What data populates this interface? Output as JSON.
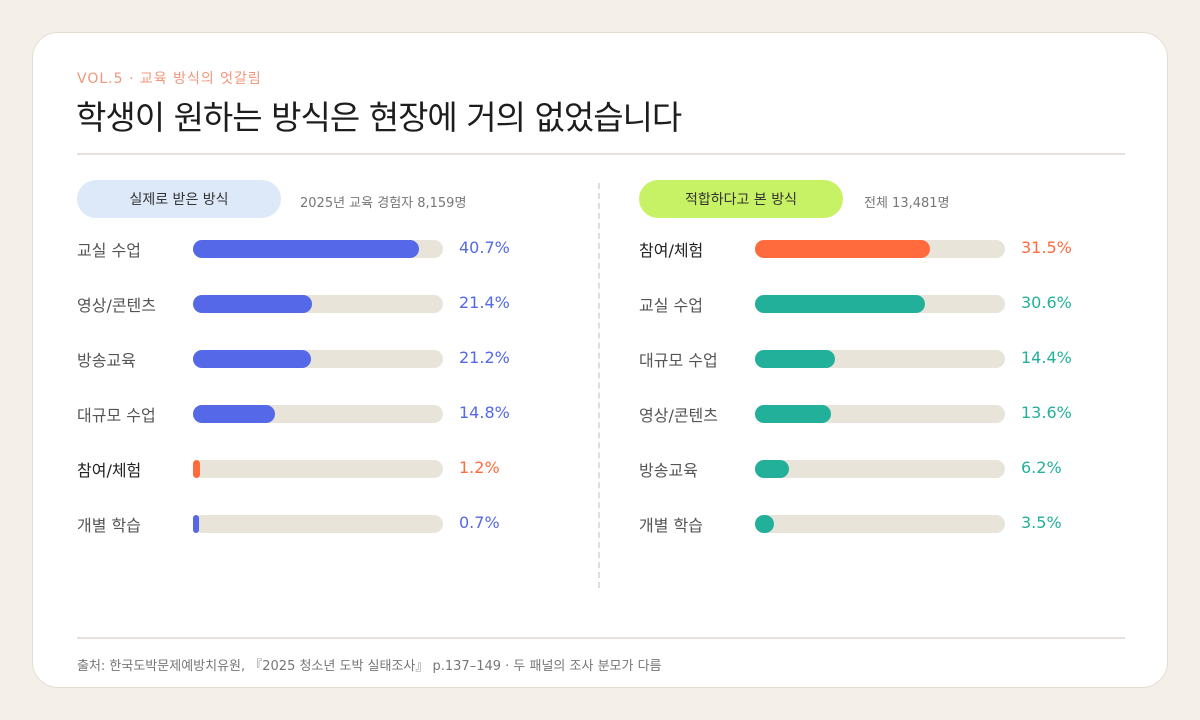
{
  "header": {
    "kicker": "VOL.5 · 교육 방식의 엇갈림",
    "title": "학생이 원하는 방식은 현장에 거의 없었습니다"
  },
  "chart_data": [
    {
      "type": "bar",
      "orientation": "horizontal",
      "title": "실제로 받은 방식",
      "subtitle": "2025년 교육 경험자 8,159명",
      "categories": [
        "교실 수업",
        "영상/콘텐츠",
        "방송교육",
        "대규모 수업",
        "참여/체험",
        "개별 학습"
      ],
      "values": [
        40.7,
        21.4,
        21.2,
        14.8,
        1.2,
        0.7
      ],
      "value_labels": [
        "40.7%",
        "21.4%",
        "21.2%",
        "14.8%",
        "1.2%",
        "0.7%"
      ],
      "highlight": "참여/체험",
      "xlim": [
        0,
        45
      ],
      "colors": {
        "base": "#5468e8",
        "highlight": "#ff6b3d",
        "pill": "#dde9f8"
      }
    },
    {
      "type": "bar",
      "orientation": "horizontal",
      "title": "적합하다고 본 방식",
      "subtitle": "전체 13,481명",
      "categories": [
        "참여/체험",
        "교실 수업",
        "대규모 수업",
        "영상/콘텐츠",
        "방송교육",
        "개별 학습"
      ],
      "values": [
        31.5,
        30.6,
        14.4,
        13.6,
        6.2,
        3.5
      ],
      "value_labels": [
        "31.5%",
        "30.6%",
        "14.4%",
        "13.6%",
        "6.2%",
        "3.5%"
      ],
      "highlight": "참여/체험",
      "xlim": [
        0,
        45
      ],
      "colors": {
        "base": "#22b09a",
        "highlight": "#ff6b3d",
        "pill": "#c8f265"
      }
    }
  ],
  "footer": {
    "source": "출처: 한국도박문제예방치유원, 『2025 청소년 도박 실태조사』 p.137–149 · 두 패널의 조사 분모가 다름"
  },
  "colors": {
    "track": "#e9e4da",
    "page": "#f4efe9",
    "card": "#ffffff",
    "accent": "#f0967a"
  }
}
